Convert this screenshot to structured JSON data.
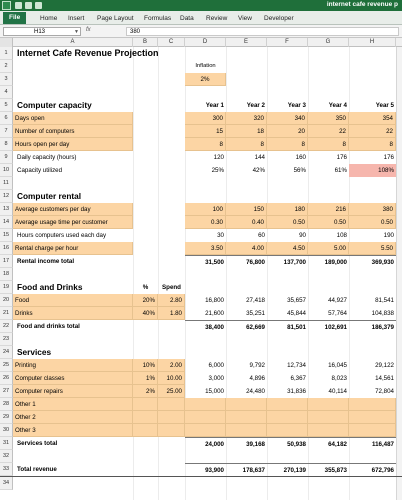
{
  "window": {
    "title": "internet cafe revenue p"
  },
  "ribbon": {
    "tabs": [
      "File",
      "Home",
      "Insert",
      "Page Layout",
      "Formulas",
      "Data",
      "Review",
      "View",
      "Developer"
    ]
  },
  "formula_bar": {
    "name_box": "H13",
    "fx": "fx",
    "formula": "380"
  },
  "columns": [
    "A",
    "B",
    "C",
    "D",
    "E",
    "F",
    "G",
    "H"
  ],
  "rows": {
    "r1": {
      "label": "Internet Cafe Revenue Projection"
    },
    "r2": {
      "inflation_label": "Inflation"
    },
    "r3": {
      "inflation_value": "2%"
    },
    "r5": {
      "label": "Computer capacity",
      "years": [
        "Year 1",
        "Year 2",
        "Year 3",
        "Year 4",
        "Year 5"
      ]
    },
    "r6": {
      "label": "Days open",
      "values": [
        "300",
        "320",
        "340",
        "350",
        "354"
      ]
    },
    "r7": {
      "label": "Number of computers",
      "values": [
        "15",
        "18",
        "20",
        "22",
        "22"
      ]
    },
    "r8": {
      "label": "Hours open per day",
      "values": [
        "8",
        "8",
        "8",
        "8",
        "8"
      ]
    },
    "r9": {
      "label": "Daily capacity (hours)",
      "values": [
        "120",
        "144",
        "160",
        "176",
        "176"
      ]
    },
    "r10": {
      "label": "Capacity utilized",
      "values": [
        "25%",
        "42%",
        "56%",
        "61%",
        "108%"
      ]
    },
    "r12": {
      "label": "Computer rental"
    },
    "r13": {
      "label": "Average customers per day",
      "values": [
        "100",
        "150",
        "180",
        "216",
        "380"
      ]
    },
    "r14": {
      "label": "Average usage time per customer",
      "values": [
        "0.30",
        "0.40",
        "0.50",
        "0.50",
        "0.50"
      ]
    },
    "r15": {
      "label": "Hours computers used each day",
      "values": [
        "30",
        "60",
        "90",
        "108",
        "190"
      ]
    },
    "r16": {
      "label": "Rental charge per hour",
      "values": [
        "3.50",
        "4.00",
        "4.50",
        "5.00",
        "5.50"
      ]
    },
    "r17": {
      "label": "Rental income total",
      "values": [
        "31,500",
        "76,800",
        "137,700",
        "189,000",
        "369,930"
      ]
    },
    "r19": {
      "label": "Food and Drinks",
      "pct_header": "%",
      "spend_header": "Spend"
    },
    "r20": {
      "label": "Food",
      "pct": "20%",
      "spend": "2.80",
      "values": [
        "16,800",
        "27,418",
        "35,657",
        "44,927",
        "81,541"
      ]
    },
    "r21": {
      "label": "Drinks",
      "pct": "40%",
      "spend": "1.80",
      "values": [
        "21,600",
        "35,251",
        "45,844",
        "57,764",
        "104,838"
      ]
    },
    "r22": {
      "label": "Food and drinks total",
      "values": [
        "38,400",
        "62,669",
        "81,501",
        "102,691",
        "186,379"
      ]
    },
    "r24": {
      "label": "Services"
    },
    "r25": {
      "label": "Printing",
      "pct": "10%",
      "spend": "2.00",
      "values": [
        "6,000",
        "9,792",
        "12,734",
        "16,045",
        "29,122"
      ]
    },
    "r26": {
      "label": "Computer classes",
      "pct": "1%",
      "spend": "10.00",
      "values": [
        "3,000",
        "4,896",
        "6,367",
        "8,023",
        "14,561"
      ]
    },
    "r27": {
      "label": "Computer repairs",
      "pct": "2%",
      "spend": "25.00",
      "values": [
        "15,000",
        "24,480",
        "31,836",
        "40,114",
        "72,804"
      ]
    },
    "r28": {
      "label": "Other 1"
    },
    "r29": {
      "label": "Other 2"
    },
    "r30": {
      "label": "Other 3"
    },
    "r31": {
      "label": "Services total",
      "values": [
        "24,000",
        "39,168",
        "50,938",
        "64,182",
        "116,487"
      ]
    },
    "r33": {
      "label": "Total revenue",
      "values": [
        "93,900",
        "178,637",
        "270,139",
        "355,873",
        "672,796"
      ]
    }
  },
  "colors": {
    "input_fill": "#fcd5a4",
    "alert_fill": "#f6b6ad",
    "titlebar": "#1f6f3a",
    "file_tab": "#217346"
  }
}
